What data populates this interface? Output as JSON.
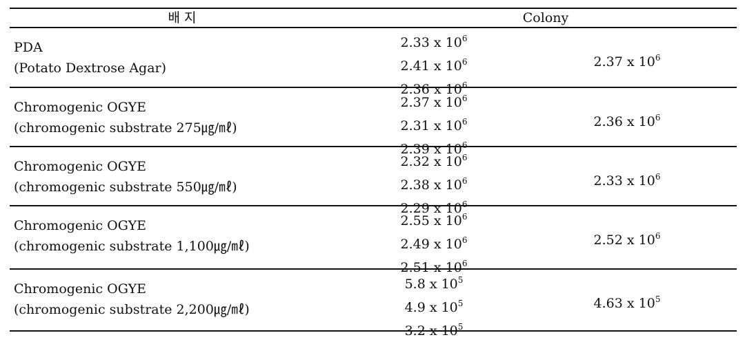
{
  "headers": {
    "medium": "배 지",
    "colony": "Colony"
  },
  "rows": [
    {
      "name": "PDA",
      "desc": "(Potato Dextrose Agar)",
      "values": [
        [
          "2.33",
          "6"
        ],
        [
          "2.41",
          "6"
        ],
        [
          "2.36",
          "6"
        ]
      ],
      "mean": [
        "2.37",
        "6"
      ]
    },
    {
      "name": "Chromogenic OGYE",
      "desc": "(chromogenic substrate 275㎍/㎖)",
      "values": [
        [
          "2.37",
          "6"
        ],
        [
          "2.31",
          "6"
        ],
        [
          "2.39",
          "6"
        ]
      ],
      "mean": [
        "2.36",
        "6"
      ]
    },
    {
      "name": "Chromogenic OGYE",
      "desc": "(chromogenic substrate 550㎍/㎖)",
      "values": [
        [
          "2.32",
          "6"
        ],
        [
          "2.38",
          "6"
        ],
        [
          "2.29",
          "6"
        ]
      ],
      "mean": [
        "2.33",
        "6"
      ]
    },
    {
      "name": "Chromogenic OGYE",
      "desc": "(chromogenic substrate 1,100㎍/㎖)",
      "values": [
        [
          "2.55",
          "6"
        ],
        [
          "2.49",
          "6"
        ],
        [
          "2.51",
          "6"
        ]
      ],
      "mean": [
        "2.52",
        "6"
      ]
    },
    {
      "name": "Chromogenic OGYE",
      "desc": "(chromogenic substrate 2,200㎍/㎖)",
      "values": [
        [
          "5.8",
          "5"
        ],
        [
          "4.9",
          "5"
        ],
        [
          "3.2",
          "5"
        ]
      ],
      "mean": [
        "4.63",
        "5"
      ]
    }
  ],
  "times_label": "x 10"
}
